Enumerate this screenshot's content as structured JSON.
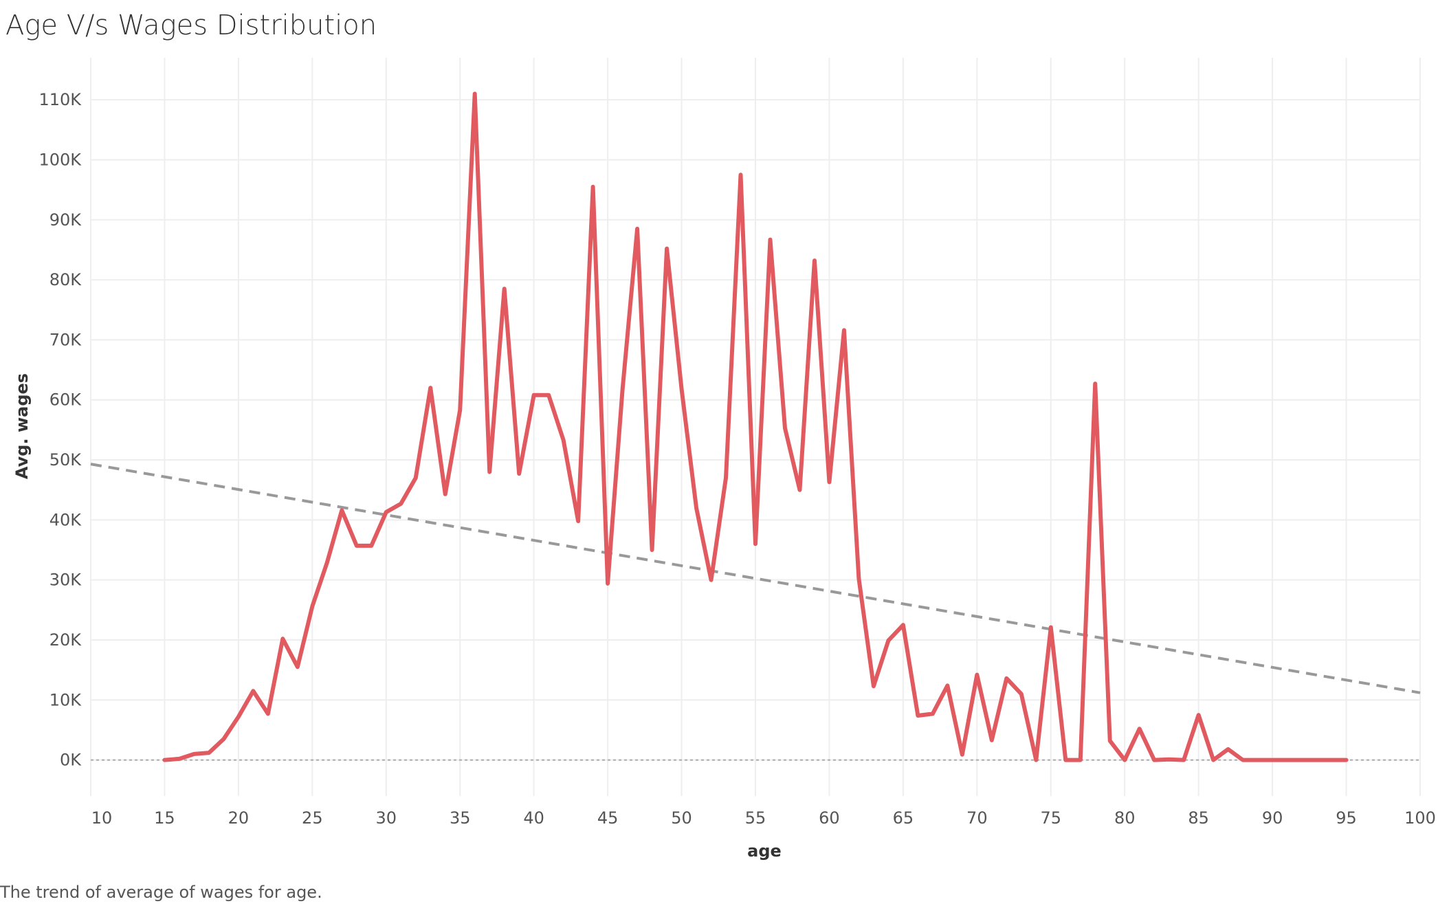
{
  "title": "Age V/s Wages Distribution",
  "caption": "The trend of average of wages for age.",
  "colors": {
    "line": "#e05a5f",
    "trend": "#999999",
    "grid": "#eeeeee",
    "zero": "#aaaaaa"
  },
  "chart_data": {
    "type": "line",
    "xlabel": "age",
    "ylabel": "Avg. wages",
    "xlim": [
      10,
      100
    ],
    "ylim": [
      -6000,
      117000
    ],
    "grid": true,
    "x_ticks": [
      10,
      15,
      20,
      25,
      30,
      35,
      40,
      45,
      50,
      55,
      60,
      65,
      70,
      75,
      80,
      85,
      90,
      95,
      100
    ],
    "y_ticks": [
      0,
      10000,
      20000,
      30000,
      40000,
      50000,
      60000,
      70000,
      80000,
      90000,
      100000,
      110000
    ],
    "y_tick_labels": [
      "0K",
      "10K",
      "20K",
      "30K",
      "40K",
      "50K",
      "60K",
      "70K",
      "80K",
      "90K",
      "100K",
      "110K"
    ],
    "series": [
      {
        "x": [
          15,
          16,
          17,
          18,
          19,
          20,
          21,
          22,
          23,
          24,
          25,
          26,
          27,
          28,
          29,
          30,
          31,
          32,
          33,
          34,
          35,
          36,
          37,
          38,
          39,
          40,
          41,
          42,
          43,
          44,
          45,
          46,
          47,
          48,
          49,
          50,
          51,
          52,
          53,
          54,
          55,
          56,
          57,
          58,
          59,
          60,
          61,
          62,
          63,
          64,
          65,
          66,
          67,
          68,
          69,
          70,
          71,
          72,
          73,
          74,
          75,
          76,
          77,
          78,
          79,
          80,
          81,
          82,
          83,
          84,
          85,
          86,
          87,
          88,
          89,
          90,
          91,
          92,
          93,
          94,
          95
        ],
        "values": [
          0,
          200,
          1000,
          1200,
          3500,
          7200,
          11500,
          7700,
          20200,
          15500,
          25600,
          32900,
          41600,
          35700,
          35700,
          41300,
          42700,
          47000,
          62000,
          44300,
          58300,
          111000,
          48000,
          78500,
          47700,
          60800,
          60800,
          53300,
          39800,
          95500,
          29400,
          61700,
          88500,
          35000,
          85200,
          61800,
          42000,
          30000,
          47000,
          97500,
          36000,
          86700,
          55300,
          45000,
          83200,
          46300,
          71600,
          30200,
          12300,
          19900,
          22500,
          7400,
          7700,
          12400,
          900,
          14200,
          3300,
          13600,
          11000,
          0,
          22100,
          0,
          0,
          62700,
          3200,
          0,
          5200,
          0,
          100,
          0,
          7500,
          0,
          1800,
          0,
          0,
          0,
          0,
          0,
          0,
          0,
          0
        ]
      }
    ],
    "trend": {
      "x": [
        10,
        100
      ],
      "y": [
        49300,
        11200
      ]
    }
  }
}
